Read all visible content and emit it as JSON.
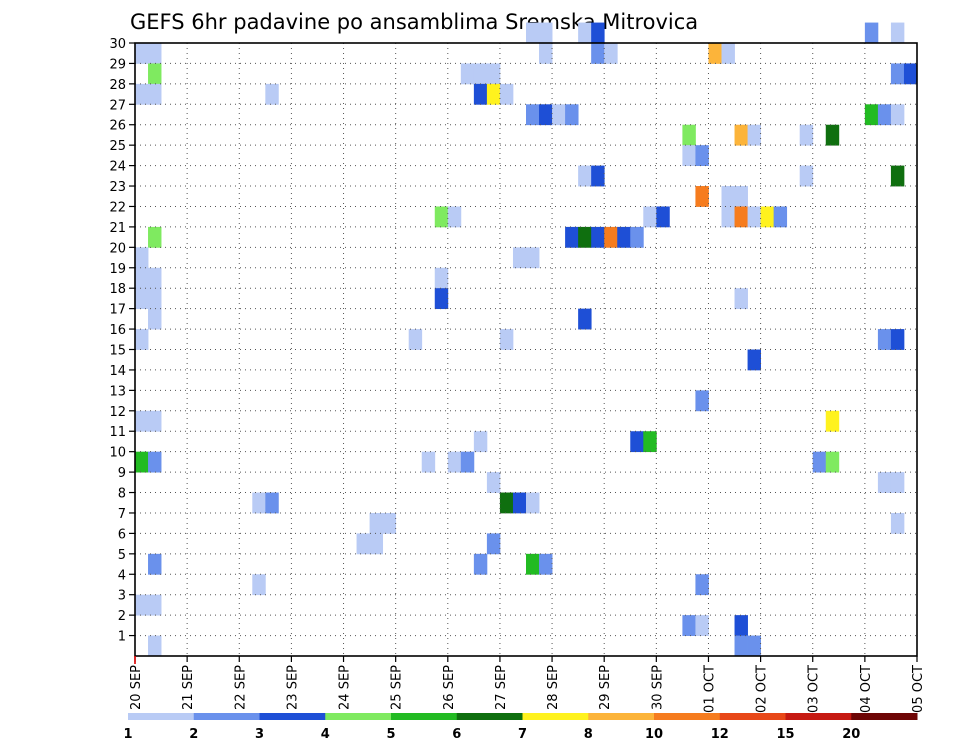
{
  "chart_data": {
    "type": "heatmap",
    "title": "GEFS 6hr padavine po ansamblima Sremska Mitrovica",
    "y_ticks": [
      "1",
      "2",
      "3",
      "4",
      "5",
      "6",
      "7",
      "8",
      "9",
      "10",
      "11",
      "12",
      "13",
      "14",
      "15",
      "16",
      "17",
      "18",
      "19",
      "20",
      "21",
      "22",
      "23",
      "24",
      "25",
      "26",
      "27",
      "28",
      "29",
      "30"
    ],
    "x_ticks": [
      "20 SEP",
      "21 SEP",
      "22 SEP",
      "23 SEP",
      "24 SEP",
      "25 SEP",
      "26 SEP",
      "27 SEP",
      "28 SEP",
      "29 SEP",
      "30 SEP",
      "01 OCT",
      "02 OCT",
      "03 OCT",
      "04 OCT",
      "05 OCT"
    ],
    "x_range_steps": [
      0,
      60
    ],
    "y_range": [
      0,
      30
    ],
    "grid": true,
    "legend_position": "bottom",
    "legend": {
      "colors": [
        "#b9cbf5",
        "#6a91ec",
        "#1e4fd6",
        "#1a3fd0",
        "#7fea60",
        "#22bb22",
        "#0f6f0f",
        "#fff21e",
        "#fcb43a",
        "#f67c1e",
        "#e84818",
        "#c61a12",
        "#9e0c0c",
        "#6e0606"
      ],
      "labels": [
        "1",
        "2",
        "3",
        "4",
        "5",
        "6",
        "7",
        "8",
        "10",
        "12",
        "15",
        "20"
      ],
      "label_positions": [
        0,
        1,
        2,
        3,
        4,
        5,
        6,
        7,
        8,
        9,
        10,
        11
      ]
    },
    "classes": [
      {
        "level": "1",
        "color": "#b9cbf5"
      },
      {
        "level": "2",
        "color": "#6a91ec"
      },
      {
        "level": "3",
        "color": "#1e4fd6"
      },
      {
        "level": "5",
        "color": "#7fea60"
      },
      {
        "level": "6",
        "color": "#22bb22"
      },
      {
        "level": "7",
        "color": "#0f6f0f"
      },
      {
        "level": "8",
        "color": "#fff21e"
      },
      {
        "level": "10",
        "color": "#fcb43a"
      },
      {
        "level": "12",
        "color": "#f67c1e"
      }
    ],
    "cells": [
      {
        "t": 0,
        "m": 29,
        "c": 1
      },
      {
        "t": 1,
        "m": 29,
        "c": 1
      },
      {
        "t": 1,
        "m": 28,
        "c": 5
      },
      {
        "t": 0,
        "m": 27,
        "c": 1
      },
      {
        "t": 1,
        "m": 27,
        "c": 1
      },
      {
        "t": 1,
        "m": 20,
        "c": 5
      },
      {
        "t": 0,
        "m": 19,
        "c": 1
      },
      {
        "t": 0,
        "m": 18,
        "c": 1
      },
      {
        "t": 1,
        "m": 18,
        "c": 1
      },
      {
        "t": 0,
        "m": 17,
        "c": 1
      },
      {
        "t": 1,
        "m": 17,
        "c": 1
      },
      {
        "t": 1,
        "m": 16,
        "c": 1
      },
      {
        "t": 0,
        "m": 15,
        "c": 1
      },
      {
        "t": 0,
        "m": 11,
        "c": 1
      },
      {
        "t": 1,
        "m": 11,
        "c": 1
      },
      {
        "t": 0,
        "m": 9,
        "c": 6
      },
      {
        "t": 1,
        "m": 9,
        "c": 2
      },
      {
        "t": 1,
        "m": 4,
        "c": 2
      },
      {
        "t": 0,
        "m": 2,
        "c": 1
      },
      {
        "t": 1,
        "m": 2,
        "c": 1
      },
      {
        "t": 1,
        "m": 0,
        "c": 1
      },
      {
        "t": 10,
        "m": 27,
        "c": 1
      },
      {
        "t": 9,
        "m": 7,
        "c": 1
      },
      {
        "t": 10,
        "m": 7,
        "c": 2
      },
      {
        "t": 9,
        "m": 3,
        "c": 1
      },
      {
        "t": 18,
        "m": 6,
        "c": 1
      },
      {
        "t": 19,
        "m": 6,
        "c": 1
      },
      {
        "t": 18,
        "m": 5,
        "c": 1
      },
      {
        "t": 17,
        "m": 5,
        "c": 1
      },
      {
        "t": 21,
        "m": 15,
        "c": 1
      },
      {
        "t": 22,
        "m": 9,
        "c": 1
      },
      {
        "t": 23,
        "m": 21,
        "c": 5
      },
      {
        "t": 24,
        "m": 21,
        "c": 1
      },
      {
        "t": 23,
        "m": 18,
        "c": 1
      },
      {
        "t": 23,
        "m": 17,
        "c": 3
      },
      {
        "t": 24,
        "m": 9,
        "c": 1
      },
      {
        "t": 25,
        "m": 9,
        "c": 2
      },
      {
        "t": 25,
        "m": 28,
        "c": 1
      },
      {
        "t": 26,
        "m": 28,
        "c": 1
      },
      {
        "t": 27,
        "m": 28,
        "c": 1
      },
      {
        "t": 26,
        "m": 27,
        "c": 3
      },
      {
        "t": 27,
        "m": 27,
        "c": 8
      },
      {
        "t": 28,
        "m": 27,
        "c": 1
      },
      {
        "t": 26,
        "m": 10,
        "c": 1
      },
      {
        "t": 27,
        "m": 8,
        "c": 1
      },
      {
        "t": 28,
        "m": 7,
        "c": 7
      },
      {
        "t": 29,
        "m": 7,
        "c": 3
      },
      {
        "t": 30,
        "m": 7,
        "c": 1
      },
      {
        "t": 27,
        "m": 5,
        "c": 2
      },
      {
        "t": 26,
        "m": 4,
        "c": 2
      },
      {
        "t": 28,
        "m": 15,
        "c": 1
      },
      {
        "t": 29,
        "m": 19,
        "c": 1
      },
      {
        "t": 30,
        "m": 19,
        "c": 1
      },
      {
        "t": 30,
        "m": 4,
        "c": 6
      },
      {
        "t": 31,
        "m": 4,
        "c": 2
      },
      {
        "t": 30,
        "m": 30,
        "c": 1
      },
      {
        "t": 31,
        "m": 30,
        "c": 1
      },
      {
        "t": 31,
        "m": 29,
        "c": 1
      },
      {
        "t": 30,
        "m": 26,
        "c": 2
      },
      {
        "t": 31,
        "m": 26,
        "c": 3
      },
      {
        "t": 32,
        "m": 26,
        "c": 1
      },
      {
        "t": 33,
        "m": 26,
        "c": 2
      },
      {
        "t": 33,
        "m": 20,
        "c": 3
      },
      {
        "t": 34,
        "m": 20,
        "c": 7
      },
      {
        "t": 35,
        "m": 20,
        "c": 3
      },
      {
        "t": 36,
        "m": 20,
        "c": 12
      },
      {
        "t": 37,
        "m": 20,
        "c": 3
      },
      {
        "t": 38,
        "m": 20,
        "c": 2
      },
      {
        "t": 34,
        "m": 23,
        "c": 1
      },
      {
        "t": 35,
        "m": 23,
        "c": 3
      },
      {
        "t": 34,
        "m": 16,
        "c": 3
      },
      {
        "t": 34,
        "m": 30,
        "c": 1
      },
      {
        "t": 35,
        "m": 30,
        "c": 3
      },
      {
        "t": 35,
        "m": 29,
        "c": 2
      },
      {
        "t": 36,
        "m": 29,
        "c": 1
      },
      {
        "t": 38,
        "m": 10,
        "c": 3
      },
      {
        "t": 39,
        "m": 10,
        "c": 6
      },
      {
        "t": 39,
        "m": 21,
        "c": 1
      },
      {
        "t": 40,
        "m": 21,
        "c": 3
      },
      {
        "t": 42,
        "m": 25,
        "c": 5
      },
      {
        "t": 42,
        "m": 24,
        "c": 1
      },
      {
        "t": 43,
        "m": 24,
        "c": 2
      },
      {
        "t": 42,
        "m": 1,
        "c": 2
      },
      {
        "t": 43,
        "m": 1,
        "c": 1
      },
      {
        "t": 43,
        "m": 12,
        "c": 2
      },
      {
        "t": 43,
        "m": 3,
        "c": 2
      },
      {
        "t": 43,
        "m": 22,
        "c": 12
      },
      {
        "t": 44,
        "m": 29,
        "c": 10
      },
      {
        "t": 45,
        "m": 29,
        "c": 1
      },
      {
        "t": 45,
        "m": 22,
        "c": 1
      },
      {
        "t": 46,
        "m": 22,
        "c": 1
      },
      {
        "t": 45,
        "m": 21,
        "c": 1
      },
      {
        "t": 46,
        "m": 21,
        "c": 12
      },
      {
        "t": 47,
        "m": 21,
        "c": 1
      },
      {
        "t": 48,
        "m": 21,
        "c": 8
      },
      {
        "t": 49,
        "m": 21,
        "c": 2
      },
      {
        "t": 46,
        "m": 25,
        "c": 10
      },
      {
        "t": 47,
        "m": 25,
        "c": 1
      },
      {
        "t": 46,
        "m": 17,
        "c": 1
      },
      {
        "t": 47,
        "m": 14,
        "c": 3
      },
      {
        "t": 46,
        "m": 1,
        "c": 3
      },
      {
        "t": 46,
        "m": 0,
        "c": 2
      },
      {
        "t": 47,
        "m": 0,
        "c": 2
      },
      {
        "t": 51,
        "m": 25,
        "c": 1
      },
      {
        "t": 51,
        "m": 23,
        "c": 1
      },
      {
        "t": 53,
        "m": 25,
        "c": 7
      },
      {
        "t": 52,
        "m": 9,
        "c": 2
      },
      {
        "t": 53,
        "m": 9,
        "c": 5
      },
      {
        "t": 53,
        "m": 11,
        "c": 8
      },
      {
        "t": 56,
        "m": 26,
        "c": 6
      },
      {
        "t": 57,
        "m": 26,
        "c": 2
      },
      {
        "t": 58,
        "m": 26,
        "c": 1
      },
      {
        "t": 56,
        "m": 30,
        "c": 2
      },
      {
        "t": 58,
        "m": 30,
        "c": 1
      },
      {
        "t": 58,
        "m": 28,
        "c": 2
      },
      {
        "t": 59,
        "m": 28,
        "c": 3
      },
      {
        "t": 58,
        "m": 23,
        "c": 7
      },
      {
        "t": 57,
        "m": 15,
        "c": 2
      },
      {
        "t": 58,
        "m": 15,
        "c": 3
      },
      {
        "t": 57,
        "m": 8,
        "c": 1
      },
      {
        "t": 58,
        "m": 8,
        "c": 1
      },
      {
        "t": 58,
        "m": 6,
        "c": 1
      }
    ]
  }
}
